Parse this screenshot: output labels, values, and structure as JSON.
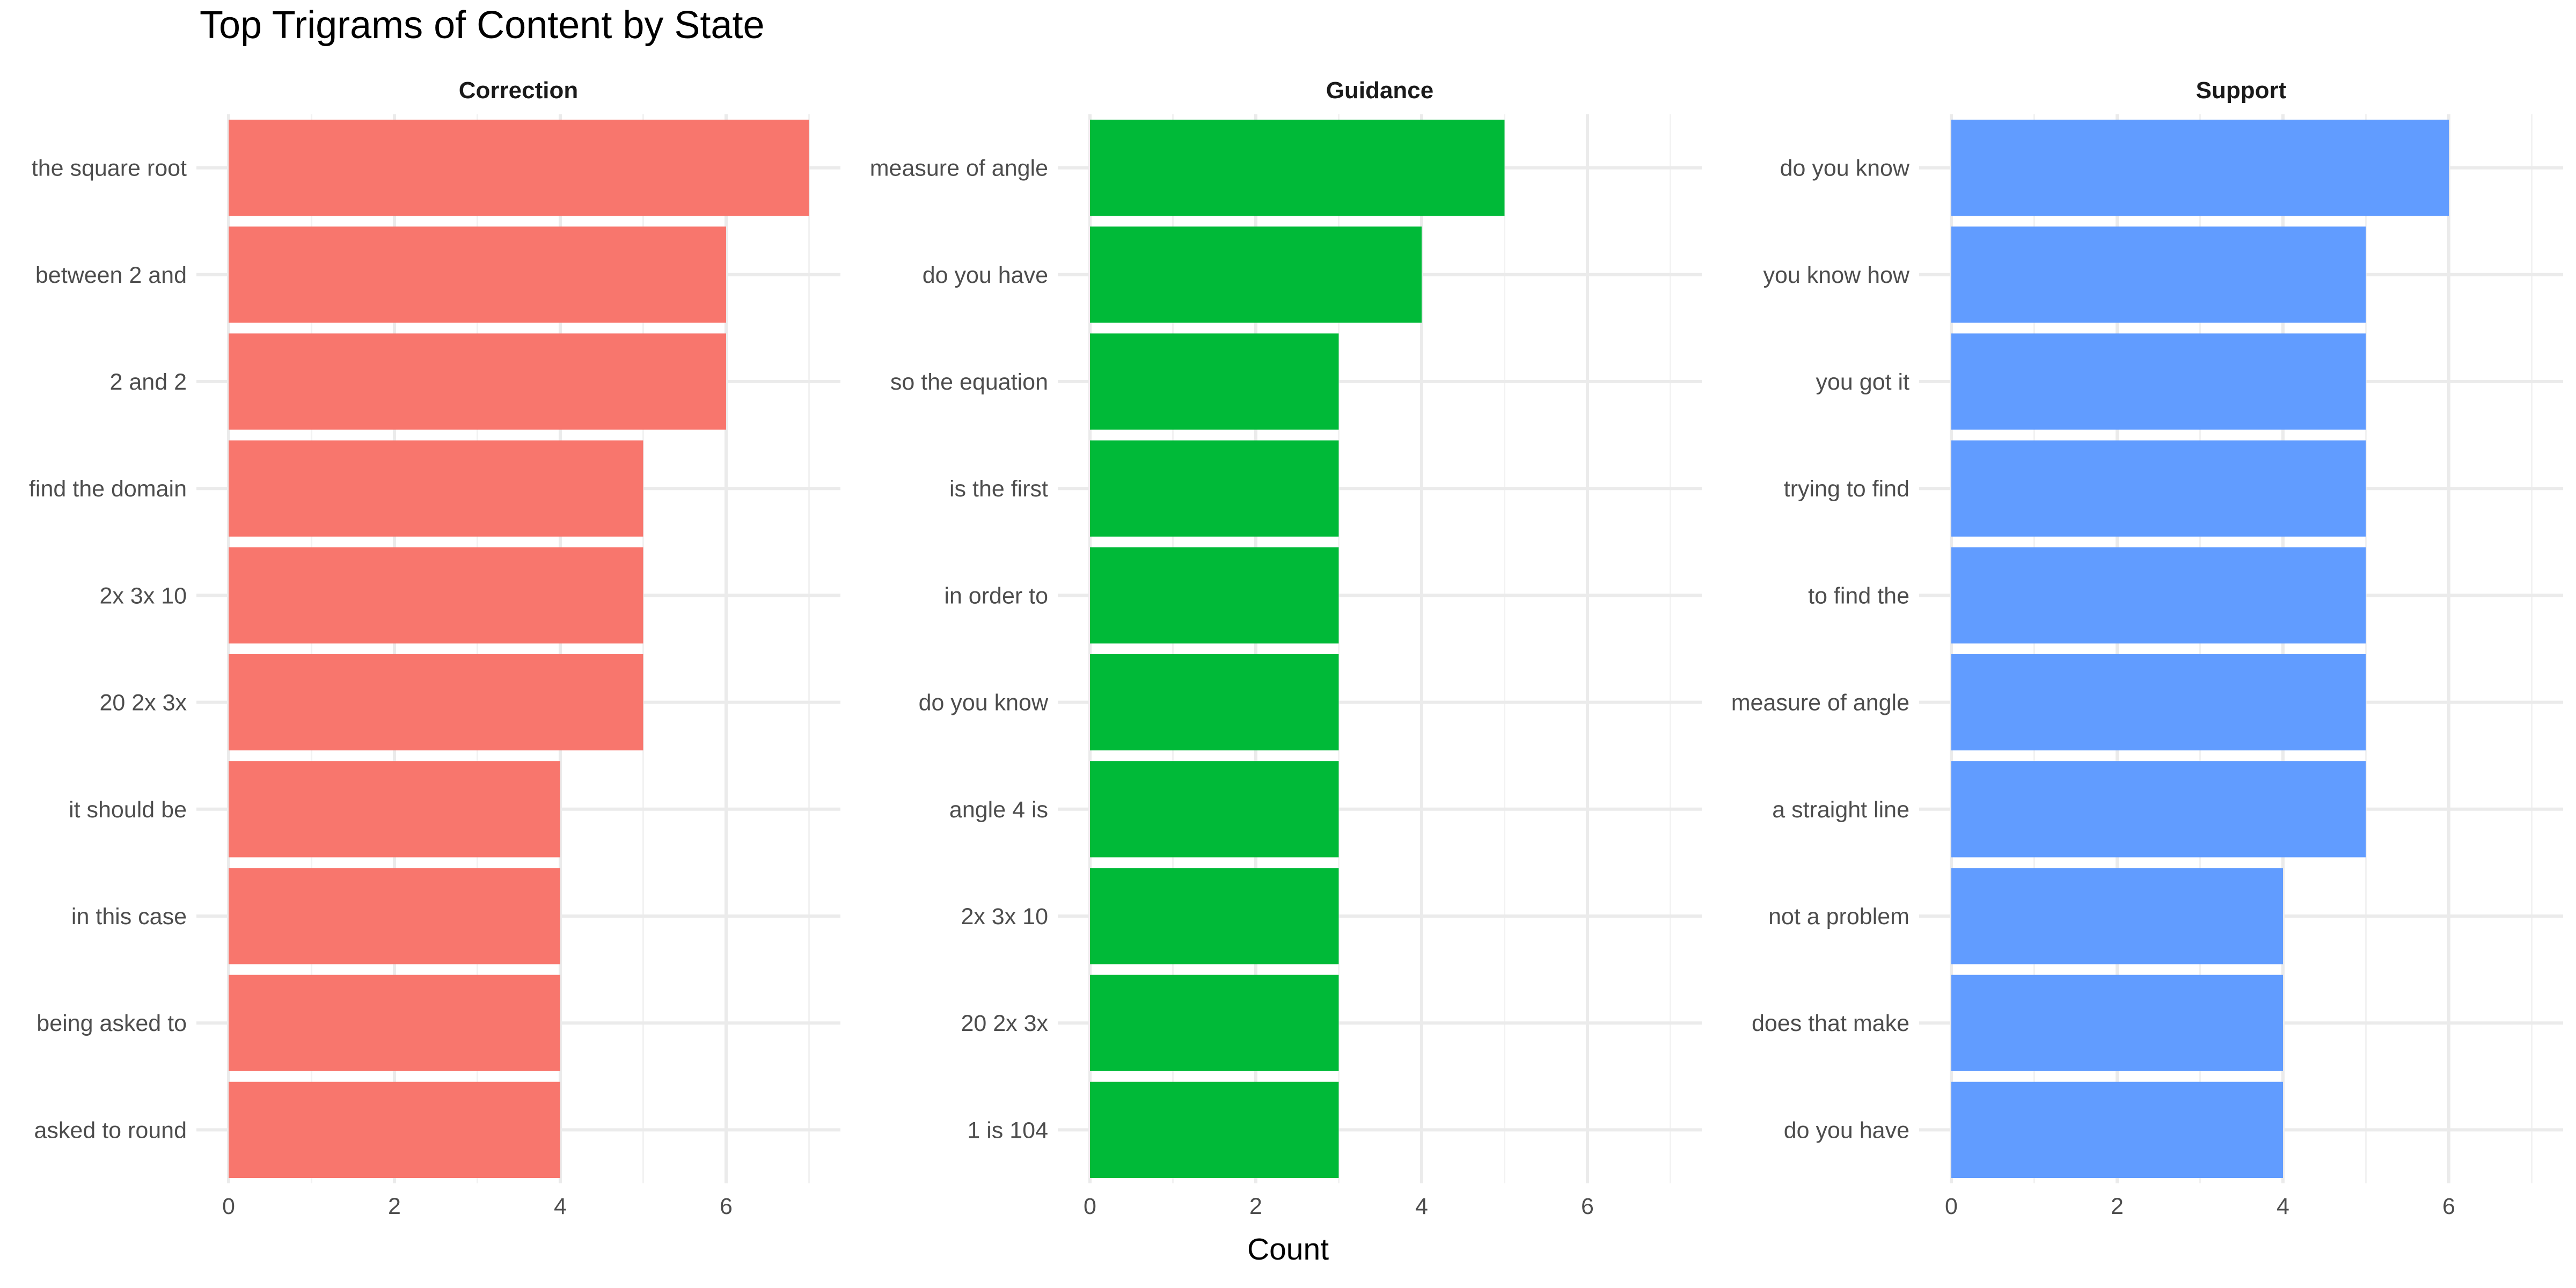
{
  "chart_data": {
    "type": "bar",
    "orientation": "horizontal",
    "title": "Top Trigrams of Content by State",
    "xlabel": "Count",
    "ylabel": "",
    "xlim": [
      0,
      7.35
    ],
    "xticks": [
      0,
      2,
      4,
      6
    ],
    "grid": true,
    "panels": [
      {
        "name": "Correction",
        "color": "#F8766D",
        "categories": [
          "the square root",
          "between 2 and",
          "2 and 2",
          "find the domain",
          "2x 3x 10",
          "20 2x 3x",
          "it should be",
          "in this case",
          "being asked to",
          "asked to round"
        ],
        "values": [
          7,
          6,
          6,
          5,
          5,
          5,
          4,
          4,
          4,
          4
        ]
      },
      {
        "name": "Guidance",
        "color": "#00BA38",
        "categories": [
          "measure of angle",
          "do you have",
          "so the equation",
          "is the first",
          "in order to",
          "do you know",
          "angle 4 is",
          "2x 3x 10",
          "20 2x 3x",
          "1 is 104"
        ],
        "values": [
          5,
          4,
          3,
          3,
          3,
          3,
          3,
          3,
          3,
          3
        ]
      },
      {
        "name": "Support",
        "color": "#619CFF",
        "categories": [
          "do you know",
          "you know how",
          "you got it",
          "trying to find",
          "to find the",
          "measure of angle",
          "a straight line",
          "not a problem",
          "does that make",
          "do you have"
        ],
        "values": [
          6,
          5,
          5,
          5,
          5,
          5,
          5,
          4,
          4,
          4
        ]
      }
    ]
  }
}
